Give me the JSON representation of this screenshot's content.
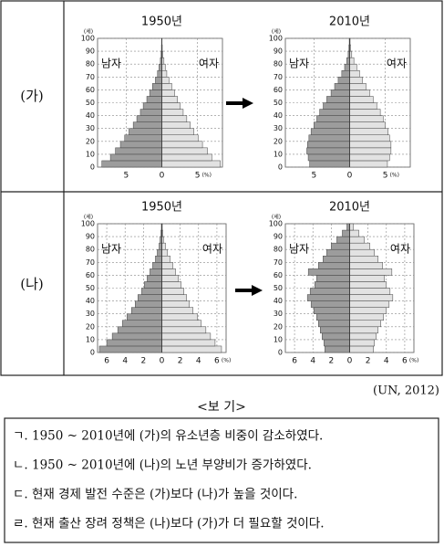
{
  "question_table": {
    "rows": [
      {
        "label": "(가)"
      },
      {
        "label": "(나)"
      }
    ]
  },
  "chart_data": [
    {
      "type": "pyramid",
      "title": "1950년",
      "y_unit": "(세)",
      "x_unit": "(%)",
      "ages": [
        0,
        5,
        10,
        15,
        20,
        25,
        30,
        35,
        40,
        45,
        50,
        55,
        60,
        65,
        70,
        75,
        80,
        85,
        90,
        95
      ],
      "series": [
        {
          "name": "남자",
          "color": "#9c9c9c",
          "values": [
            8.4,
            7.2,
            6.5,
            5.8,
            5.2,
            4.6,
            4.0,
            3.5,
            3.0,
            2.6,
            2.1,
            1.7,
            1.3,
            0.9,
            0.6,
            0.4,
            0.2,
            0.1,
            0.05,
            0.02
          ]
        },
        {
          "name": "여자",
          "color": "#e2e2e2",
          "values": [
            8.2,
            7.0,
            6.4,
            5.7,
            5.1,
            4.5,
            4.0,
            3.5,
            3.0,
            2.6,
            2.2,
            1.8,
            1.4,
            1.0,
            0.7,
            0.5,
            0.3,
            0.15,
            0.07,
            0.03
          ]
        }
      ],
      "xlim": [
        -9,
        8.5
      ],
      "xticks": [
        {
          "value": -5,
          "label": "5"
        },
        0,
        5
      ],
      "ylim": [
        0,
        100
      ],
      "yticks": [
        0,
        10,
        20,
        30,
        40,
        50,
        60,
        70,
        80,
        90,
        100
      ],
      "grid": true
    },
    {
      "type": "pyramid",
      "title": "2010년",
      "y_unit": "(세)",
      "x_unit": "(%)",
      "ages": [
        0,
        5,
        10,
        15,
        20,
        25,
        30,
        35,
        40,
        45,
        50,
        55,
        60,
        65,
        70,
        75,
        80,
        85,
        90,
        95
      ],
      "series": [
        {
          "name": "남자",
          "color": "#9c9c9c",
          "values": [
            5.6,
            5.8,
            6.0,
            5.9,
            5.7,
            5.4,
            5.0,
            4.6,
            4.2,
            3.7,
            3.2,
            2.6,
            2.1,
            1.6,
            1.1,
            0.7,
            0.4,
            0.2,
            0.1,
            0.05
          ]
        },
        {
          "name": "여자",
          "color": "#e2e2e2",
          "values": [
            5.3,
            5.6,
            5.8,
            5.8,
            5.6,
            5.4,
            5.0,
            4.7,
            4.3,
            3.8,
            3.3,
            2.8,
            2.3,
            1.8,
            1.4,
            1.0,
            0.6,
            0.3,
            0.15,
            0.07
          ]
        }
      ],
      "xlim": [
        -9,
        8.5
      ],
      "xticks": [
        {
          "value": -5,
          "label": "5"
        },
        0,
        5
      ],
      "ylim": [
        0,
        100
      ],
      "yticks": [
        0,
        10,
        20,
        30,
        40,
        50,
        60,
        70,
        80,
        90,
        100
      ],
      "grid": true
    },
    {
      "type": "pyramid",
      "title": "1950년",
      "y_unit": "(세)",
      "x_unit": "(%)",
      "ages": [
        0,
        5,
        10,
        15,
        20,
        25,
        30,
        35,
        40,
        45,
        50,
        55,
        60,
        65,
        70,
        75,
        80,
        85,
        90,
        95
      ],
      "series": [
        {
          "name": "남자",
          "color": "#9c9c9c",
          "values": [
            6.8,
            6.0,
            5.4,
            4.8,
            4.3,
            3.8,
            3.3,
            2.9,
            2.6,
            2.2,
            1.9,
            1.6,
            1.3,
            1.0,
            0.7,
            0.5,
            0.3,
            0.2,
            0.1,
            0.05
          ]
        },
        {
          "name": "여자",
          "color": "#e2e2e2",
          "values": [
            6.5,
            5.8,
            5.3,
            4.8,
            4.3,
            3.9,
            3.4,
            3.0,
            2.7,
            2.4,
            2.1,
            1.8,
            1.5,
            1.2,
            0.9,
            0.6,
            0.4,
            0.2,
            0.1,
            0.05
          ]
        }
      ],
      "xlim": [
        -7,
        7
      ],
      "xticks": [
        {
          "value": -6,
          "label": "6"
        },
        {
          "value": -4,
          "label": "4"
        },
        {
          "value": -2,
          "label": "2"
        },
        0,
        2,
        4,
        6
      ],
      "ylim": [
        0,
        100
      ],
      "yticks": [
        0,
        10,
        20,
        30,
        40,
        50,
        60,
        70,
        80,
        90,
        100
      ],
      "grid": true
    },
    {
      "type": "pyramid",
      "title": "2010년",
      "y_unit": "(세)",
      "x_unit": "(%)",
      "ages": [
        0,
        5,
        10,
        15,
        20,
        25,
        30,
        35,
        40,
        45,
        50,
        55,
        60,
        65,
        70,
        75,
        80,
        85,
        90,
        95
      ],
      "series": [
        {
          "name": "남자",
          "color": "#9c9c9c",
          "values": [
            2.7,
            2.8,
            3.0,
            3.2,
            3.4,
            3.6,
            3.9,
            4.2,
            4.6,
            4.3,
            3.8,
            3.6,
            4.5,
            3.4,
            2.9,
            2.5,
            2.0,
            1.4,
            0.8,
            0.3
          ]
        },
        {
          "name": "여자",
          "color": "#e2e2e2",
          "values": [
            2.6,
            2.7,
            2.9,
            3.1,
            3.4,
            3.7,
            4.0,
            4.3,
            4.7,
            4.4,
            4.0,
            3.8,
            4.6,
            3.6,
            3.1,
            2.7,
            2.2,
            1.6,
            1.0,
            0.4
          ]
        }
      ],
      "xlim": [
        -7,
        7
      ],
      "xticks": [
        {
          "value": -6,
          "label": "6"
        },
        {
          "value": -4,
          "label": "4"
        },
        {
          "value": -2,
          "label": "2"
        },
        0,
        2,
        4,
        6
      ],
      "ylim": [
        0,
        100
      ],
      "yticks": [
        0,
        10,
        20,
        30,
        40,
        50,
        60,
        70,
        80,
        90,
        100
      ],
      "grid": true
    }
  ],
  "source": "(UN, 2012)",
  "bogi": {
    "title": "<보 기>",
    "items": [
      "ㄱ. 1950 ~ 2010년에 (가)의 유소년층 비중이 감소하였다.",
      "ㄴ. 1950 ~ 2010년에 (나)의 노년 부양비가 증가하였다.",
      "ㄷ. 현재 경제 발전 수준은 (가)보다 (나)가 높을 것이다.",
      "ㄹ. 현재 출산 장려 정책은 (나)보다 (가)가 더 필요할 것이다."
    ]
  }
}
